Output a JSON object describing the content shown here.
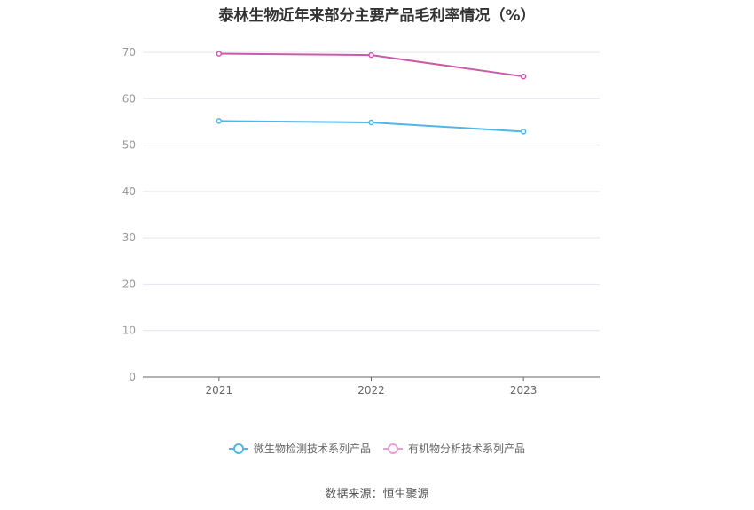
{
  "chart_data": {
    "type": "line",
    "title": "泰林生物近年来部分主要产品毛利率情况（%）",
    "categories": [
      "2021",
      "2022",
      "2023"
    ],
    "series": [
      {
        "name": "微生物检测技术系列产品",
        "values": [
          55.2,
          54.9,
          52.9
        ],
        "color": "#4fb6e8"
      },
      {
        "name": "有机物分析技术系列产品",
        "values": [
          69.7,
          69.4,
          64.8
        ],
        "color": "#cc5aaa"
      }
    ],
    "ylim": [
      0,
      70
    ],
    "yticks": [
      0,
      10,
      20,
      30,
      40,
      50,
      60,
      70
    ],
    "grid": true,
    "legend_position": "bottom"
  },
  "source_text": "数据来源：恒生聚源"
}
